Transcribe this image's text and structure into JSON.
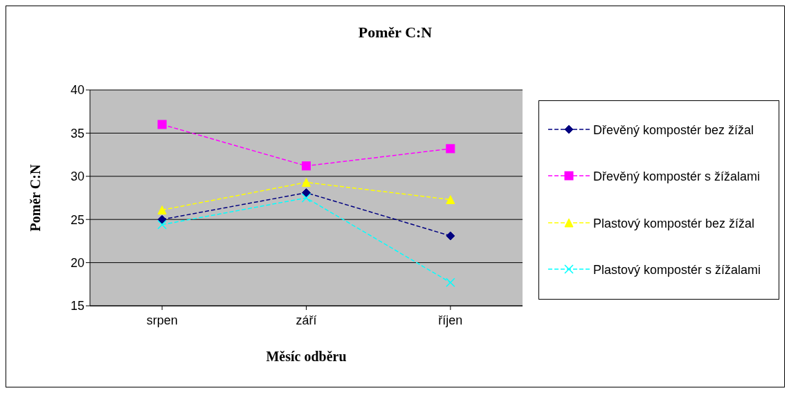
{
  "chart_data": {
    "type": "line",
    "title": "Poměr C:N",
    "xlabel": "Měsíc odběru",
    "ylabel": "Poměr C:N",
    "categories": [
      "srpen",
      "září",
      "říjen"
    ],
    "series": [
      {
        "name": "Dřevěný kompostér bez žížal",
        "color": "#000080",
        "marker": "diamond",
        "values": [
          25.0,
          28.1,
          23.1
        ]
      },
      {
        "name": "Dřevěný kompostér s žížalami",
        "color": "#ff00ff",
        "marker": "square",
        "values": [
          36.0,
          31.2,
          33.2
        ]
      },
      {
        "name": "Plastový kompostér bez žížal",
        "color": "#ffff00",
        "marker": "triangle",
        "values": [
          26.1,
          29.3,
          27.3
        ]
      },
      {
        "name": "Plastový kompostér s žížalami",
        "color": "#00ffff",
        "marker": "cross",
        "values": [
          24.4,
          27.5,
          17.7
        ]
      }
    ],
    "ylim": [
      15,
      40
    ],
    "yticks": [
      15,
      20,
      25,
      30,
      35,
      40
    ],
    "grid": "y",
    "legend": "right",
    "line_style": "dashed"
  }
}
